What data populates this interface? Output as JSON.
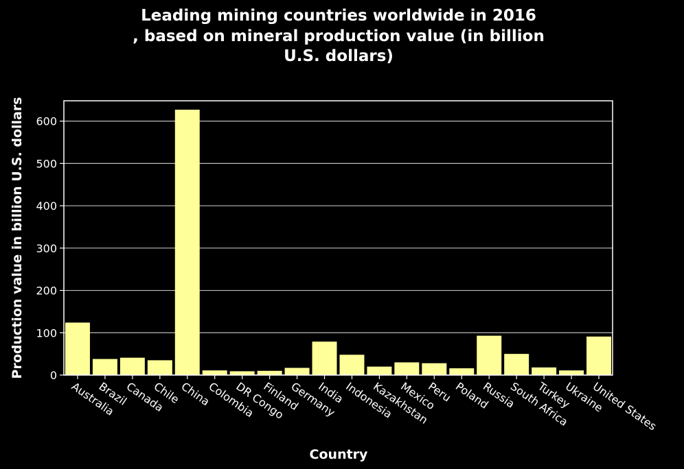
{
  "chart_data": {
    "type": "bar",
    "title_lines": [
      "Leading mining countries worldwide in 2016",
      ", based on mineral production value (in billion",
      "U.S. dollars)"
    ],
    "xlabel": "Country",
    "ylabel": "Production value in billion U.S. dollars",
    "categories": [
      "Australia",
      "Brazil",
      "Canada",
      "Chile",
      "China",
      "Colombia",
      "DR Congo",
      "Finland",
      "Germany",
      "India",
      "Indonesia",
      "Kazakhstan",
      "Mexico",
      "Peru",
      "Poland",
      "Russia",
      "South Africa",
      "Turkey",
      "Ukraine",
      "United States"
    ],
    "values": [
      124,
      38,
      41,
      35,
      627,
      11,
      9,
      10,
      17,
      79,
      48,
      20,
      30,
      28,
      16,
      93,
      50,
      18,
      11,
      91
    ],
    "yticks": [
      0,
      100,
      200,
      300,
      400,
      500,
      600
    ],
    "ylim": [
      0,
      648
    ],
    "grid": "horizontal",
    "colors": {
      "background": "#000000",
      "bar": "#ffff99",
      "axes": "#ffffff",
      "grid": "#bdbdbd",
      "text": "#ffffff"
    }
  }
}
